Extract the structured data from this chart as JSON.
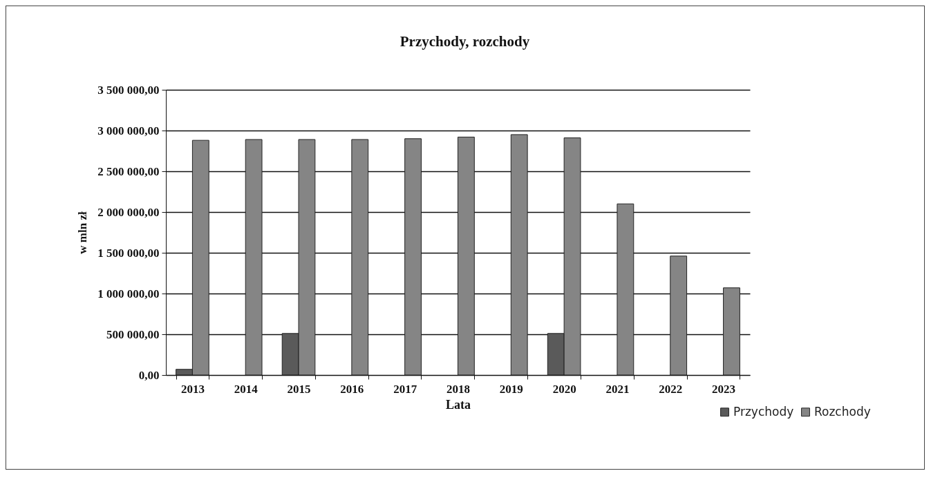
{
  "chart_data": {
    "type": "bar",
    "title": "Przychody, rozchody",
    "xlabel": "Lata",
    "ylabel": "w mln zł",
    "categories": [
      "2013",
      "2014",
      "2015",
      "2016",
      "2017",
      "2018",
      "2019",
      "2020",
      "2021",
      "2022",
      "2023"
    ],
    "series": [
      {
        "name": "Przychody",
        "color": "#5a5a5a",
        "values": [
          70000,
          null,
          510000,
          null,
          null,
          null,
          null,
          510000,
          null,
          null,
          null
        ]
      },
      {
        "name": "Rozchody",
        "color": "#858585",
        "values": [
          2880000,
          2890000,
          2890000,
          2890000,
          2900000,
          2920000,
          2950000,
          2910000,
          2100000,
          1460000,
          1070000
        ]
      }
    ],
    "ylim": [
      0,
      3500000
    ],
    "yticks": [
      {
        "value": 0,
        "label": "0,00"
      },
      {
        "value": 500000,
        "label": "500 000,00"
      },
      {
        "value": 1000000,
        "label": "1 000 000,00"
      },
      {
        "value": 1500000,
        "label": "1 500 000,00"
      },
      {
        "value": 2000000,
        "label": "2 000 000,00"
      },
      {
        "value": 2500000,
        "label": "2 500 000,00"
      },
      {
        "value": 3000000,
        "label": "3 000 000,00"
      },
      {
        "value": 3500000,
        "label": "3 500 000,00"
      }
    ],
    "grid": "y",
    "legend": "bottom right"
  }
}
